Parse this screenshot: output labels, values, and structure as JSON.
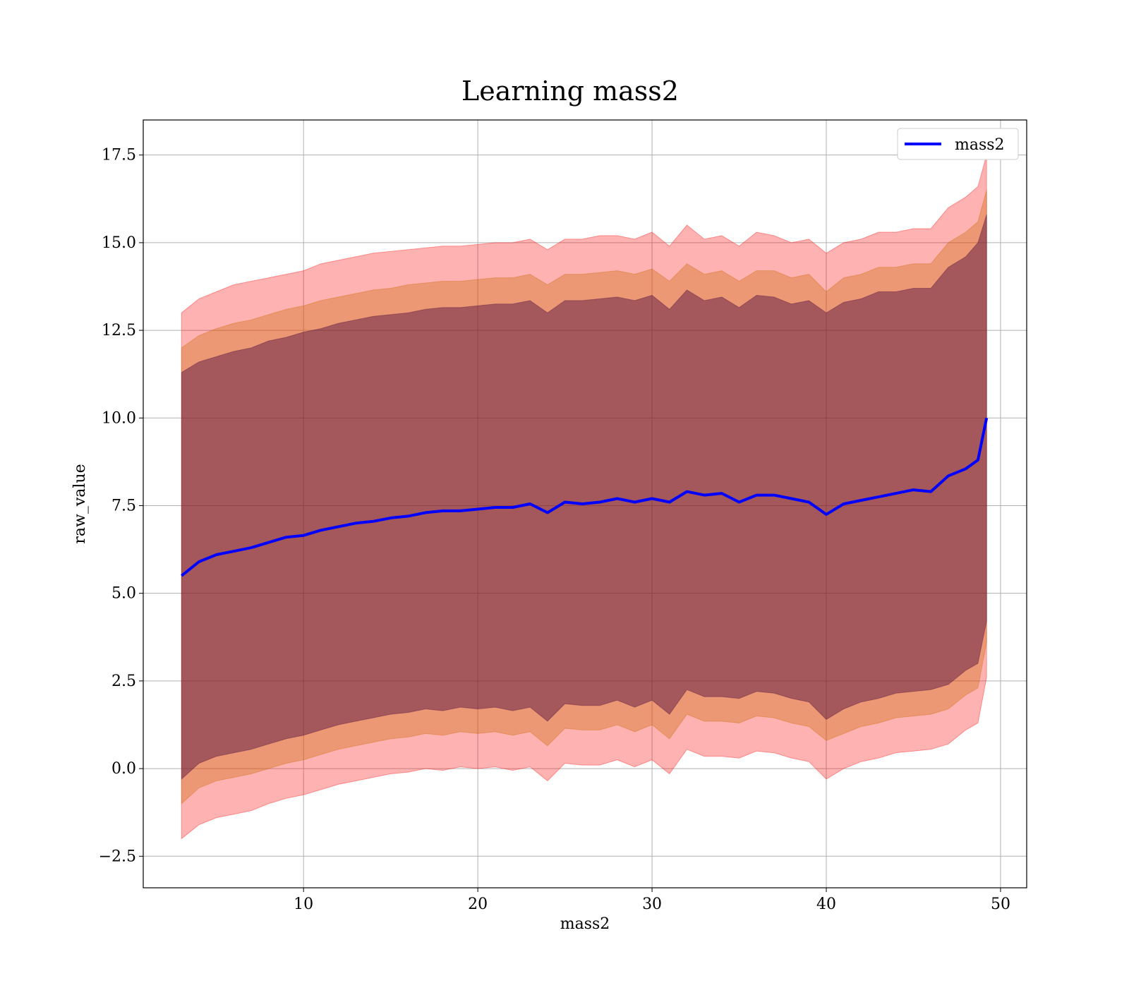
{
  "chart_data": {
    "type": "line",
    "title": "Learning mass2",
    "xlabel": "mass2",
    "ylabel": "raw_value",
    "xlim": [
      0.8,
      51.5
    ],
    "ylim": [
      -3.4,
      18.5
    ],
    "xticks": [
      10,
      20,
      30,
      40,
      50
    ],
    "xtick_labels": [
      "10",
      "20",
      "30",
      "40",
      "50"
    ],
    "yticks": [
      -2.5,
      0.0,
      2.5,
      5.0,
      7.5,
      10.0,
      12.5,
      15.0,
      17.5
    ],
    "ytick_labels": [
      "−2.5",
      "0.0",
      "2.5",
      "5.0",
      "7.5",
      "10.0",
      "12.5",
      "15.0",
      "17.5"
    ],
    "grid": true,
    "legend": {
      "placement": "top-right",
      "entries": [
        "mass2"
      ]
    },
    "series": [
      {
        "name": "mass2",
        "color": "#0000ff",
        "x": [
          3.0,
          4.0,
          5.0,
          6.0,
          7.0,
          8.0,
          9.0,
          10.0,
          11.0,
          12.0,
          13.0,
          14.0,
          15.0,
          16.0,
          17.0,
          18.0,
          19.0,
          20.0,
          21.0,
          22.0,
          23.0,
          24.0,
          25.0,
          26.0,
          27.0,
          28.0,
          29.0,
          30.0,
          31.0,
          32.0,
          33.0,
          34.0,
          35.0,
          36.0,
          37.0,
          38.0,
          39.0,
          40.0,
          41.0,
          42.0,
          43.0,
          44.0,
          45.0,
          46.0,
          47.0,
          48.0,
          48.7,
          49.2
        ],
        "y": [
          5.5,
          5.9,
          6.1,
          6.2,
          6.3,
          6.45,
          6.6,
          6.65,
          6.8,
          6.9,
          7.0,
          7.05,
          7.15,
          7.2,
          7.3,
          7.35,
          7.35,
          7.4,
          7.45,
          7.45,
          7.55,
          7.3,
          7.6,
          7.55,
          7.6,
          7.7,
          7.6,
          7.7,
          7.6,
          7.9,
          7.8,
          7.85,
          7.6,
          7.8,
          7.8,
          7.7,
          7.6,
          7.25,
          7.55,
          7.65,
          7.75,
          7.85,
          7.95,
          7.9,
          8.35,
          8.55,
          8.8,
          10.0
        ]
      }
    ],
    "bands": [
      {
        "color": "#ff0000",
        "opacity": 0.3,
        "x": [
          3.0,
          4.0,
          5.0,
          6.0,
          7.0,
          8.0,
          9.0,
          10.0,
          11.0,
          12.0,
          13.0,
          14.0,
          15.0,
          16.0,
          17.0,
          18.0,
          19.0,
          20.0,
          21.0,
          22.0,
          23.0,
          24.0,
          25.0,
          26.0,
          27.0,
          28.0,
          29.0,
          30.0,
          31.0,
          32.0,
          33.0,
          34.0,
          35.0,
          36.0,
          37.0,
          38.0,
          39.0,
          40.0,
          41.0,
          42.0,
          43.0,
          44.0,
          45.0,
          46.0,
          47.0,
          48.0,
          48.7,
          49.2
        ],
        "upper": [
          13.0,
          13.4,
          13.6,
          13.8,
          13.9,
          14.0,
          14.1,
          14.2,
          14.4,
          14.5,
          14.6,
          14.7,
          14.75,
          14.8,
          14.85,
          14.9,
          14.9,
          14.95,
          15.0,
          15.0,
          15.1,
          14.8,
          15.1,
          15.1,
          15.2,
          15.2,
          15.1,
          15.3,
          14.9,
          15.5,
          15.1,
          15.2,
          14.9,
          15.3,
          15.2,
          15.0,
          15.1,
          14.7,
          15.0,
          15.1,
          15.3,
          15.3,
          15.4,
          15.4,
          16.0,
          16.3,
          16.6,
          17.5
        ],
        "lower": [
          -2.0,
          -1.6,
          -1.4,
          -1.3,
          -1.2,
          -1.0,
          -0.85,
          -0.75,
          -0.6,
          -0.45,
          -0.35,
          -0.25,
          -0.15,
          -0.1,
          0.0,
          -0.05,
          0.05,
          0.0,
          0.05,
          -0.05,
          0.05,
          -0.35,
          0.15,
          0.1,
          0.1,
          0.25,
          0.05,
          0.25,
          -0.15,
          0.55,
          0.35,
          0.35,
          0.3,
          0.5,
          0.45,
          0.3,
          0.2,
          -0.3,
          0.0,
          0.2,
          0.3,
          0.45,
          0.5,
          0.55,
          0.7,
          1.1,
          1.3,
          2.6
        ]
      },
      {
        "color": "#cc6600",
        "opacity": 0.35,
        "x": [
          3.0,
          4.0,
          5.0,
          6.0,
          7.0,
          8.0,
          9.0,
          10.0,
          11.0,
          12.0,
          13.0,
          14.0,
          15.0,
          16.0,
          17.0,
          18.0,
          19.0,
          20.0,
          21.0,
          22.0,
          23.0,
          24.0,
          25.0,
          26.0,
          27.0,
          28.0,
          29.0,
          30.0,
          31.0,
          32.0,
          33.0,
          34.0,
          35.0,
          36.0,
          37.0,
          38.0,
          39.0,
          40.0,
          41.0,
          42.0,
          43.0,
          44.0,
          45.0,
          46.0,
          47.0,
          48.0,
          48.7,
          49.2
        ],
        "upper": [
          12.0,
          12.35,
          12.55,
          12.7,
          12.8,
          12.95,
          13.1,
          13.2,
          13.35,
          13.45,
          13.55,
          13.65,
          13.7,
          13.8,
          13.85,
          13.9,
          13.9,
          13.95,
          14.0,
          14.0,
          14.1,
          13.8,
          14.1,
          14.1,
          14.15,
          14.2,
          14.1,
          14.25,
          13.9,
          14.4,
          14.1,
          14.2,
          13.9,
          14.2,
          14.2,
          14.0,
          14.1,
          13.6,
          14.0,
          14.1,
          14.3,
          14.3,
          14.4,
          14.4,
          15.0,
          15.3,
          15.6,
          16.5
        ],
        "lower": [
          -1.0,
          -0.55,
          -0.35,
          -0.25,
          -0.15,
          0.0,
          0.15,
          0.25,
          0.4,
          0.55,
          0.65,
          0.75,
          0.85,
          0.9,
          1.0,
          0.95,
          1.05,
          1.0,
          1.05,
          0.95,
          1.05,
          0.65,
          1.15,
          1.1,
          1.1,
          1.25,
          1.05,
          1.25,
          0.85,
          1.55,
          1.35,
          1.35,
          1.3,
          1.5,
          1.45,
          1.3,
          1.2,
          0.8,
          1.0,
          1.2,
          1.3,
          1.45,
          1.5,
          1.55,
          1.7,
          2.1,
          2.3,
          3.6
        ]
      },
      {
        "color": "#4b0b3f",
        "opacity": 0.45,
        "x": [
          3.0,
          4.0,
          5.0,
          6.0,
          7.0,
          8.0,
          9.0,
          10.0,
          11.0,
          12.0,
          13.0,
          14.0,
          15.0,
          16.0,
          17.0,
          18.0,
          19.0,
          20.0,
          21.0,
          22.0,
          23.0,
          24.0,
          25.0,
          26.0,
          27.0,
          28.0,
          29.0,
          30.0,
          31.0,
          32.0,
          33.0,
          34.0,
          35.0,
          36.0,
          37.0,
          38.0,
          39.0,
          40.0,
          41.0,
          42.0,
          43.0,
          44.0,
          45.0,
          46.0,
          47.0,
          48.0,
          48.7,
          49.2
        ],
        "upper": [
          11.3,
          11.6,
          11.75,
          11.9,
          12.0,
          12.2,
          12.3,
          12.45,
          12.55,
          12.7,
          12.8,
          12.9,
          12.95,
          13.0,
          13.1,
          13.15,
          13.15,
          13.2,
          13.25,
          13.25,
          13.35,
          13.0,
          13.35,
          13.35,
          13.4,
          13.45,
          13.35,
          13.5,
          13.1,
          13.65,
          13.35,
          13.45,
          13.15,
          13.5,
          13.45,
          13.25,
          13.35,
          13.0,
          13.3,
          13.4,
          13.6,
          13.6,
          13.7,
          13.7,
          14.3,
          14.6,
          15.0,
          15.8
        ],
        "lower": [
          -0.3,
          0.15,
          0.35,
          0.45,
          0.55,
          0.7,
          0.85,
          0.95,
          1.1,
          1.25,
          1.35,
          1.45,
          1.55,
          1.6,
          1.7,
          1.65,
          1.75,
          1.7,
          1.75,
          1.65,
          1.75,
          1.35,
          1.85,
          1.8,
          1.8,
          1.95,
          1.75,
          1.95,
          1.55,
          2.25,
          2.05,
          2.05,
          2.0,
          2.2,
          2.15,
          2.0,
          1.9,
          1.4,
          1.7,
          1.9,
          2.0,
          2.15,
          2.2,
          2.25,
          2.4,
          2.8,
          3.0,
          4.2
        ]
      }
    ]
  }
}
